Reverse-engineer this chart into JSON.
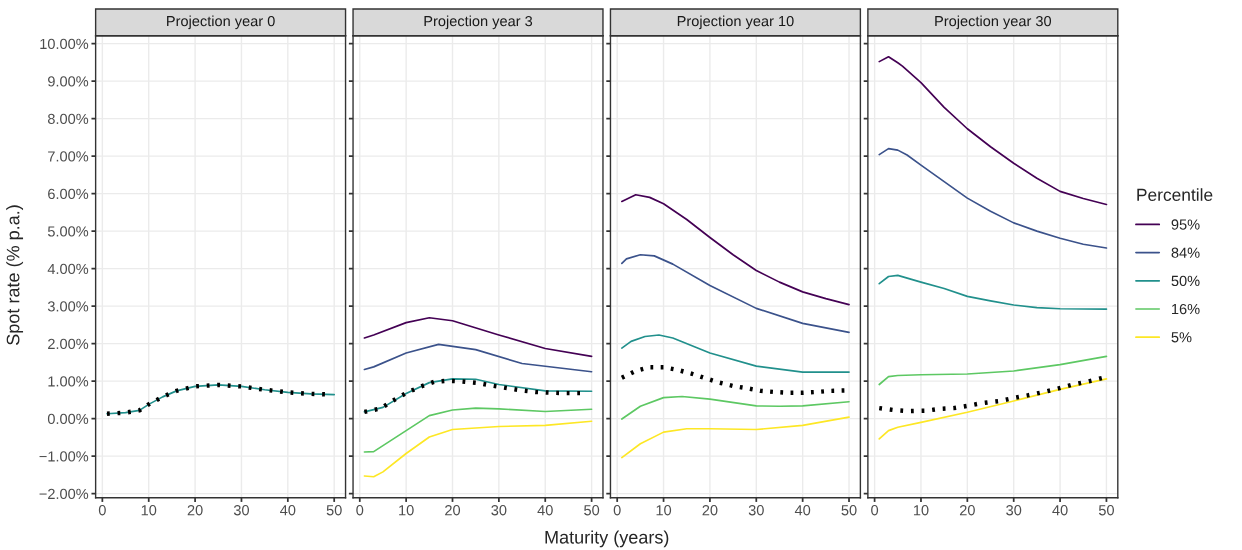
{
  "chart_data": [
    {
      "type": "line",
      "title": "Projection year 0",
      "ylabel": "Spot rate (% p.a.)",
      "xlim": [
        -1.45,
        52.45
      ],
      "ylim": [
        -2.11,
        10.21
      ],
      "xticks": [
        0,
        10,
        20,
        30,
        40,
        50
      ],
      "yticks": [
        {
          "value": -2,
          "label": "−2.00%"
        },
        {
          "value": -1,
          "label": "−1.00%"
        },
        {
          "value": 0,
          "label": "0.00%"
        },
        {
          "value": 1,
          "label": "1.00%"
        },
        {
          "value": 2,
          "label": "2.00%"
        },
        {
          "value": 3,
          "label": "3.00%"
        },
        {
          "value": 4,
          "label": "4.00%"
        },
        {
          "value": 5,
          "label": "5.00%"
        },
        {
          "value": 6,
          "label": "6.00%"
        },
        {
          "value": 7,
          "label": "7.00%"
        },
        {
          "value": 8,
          "label": "8.00%"
        },
        {
          "value": 9,
          "label": "9.00%"
        },
        {
          "value": 10,
          "label": "10.00%"
        }
      ],
      "grid": true,
      "series": [
        {
          "color": "#21908c",
          "x": [
            1,
            5,
            8,
            10,
            13,
            16,
            20,
            25,
            30,
            35,
            40,
            45,
            50
          ],
          "values": [
            0.13,
            0.16,
            0.22,
            0.38,
            0.58,
            0.74,
            0.86,
            0.9,
            0.86,
            0.77,
            0.7,
            0.66,
            0.64
          ]
        },
        {
          "color": "#000000",
          "line_style": "dotted",
          "x": [
            1,
            5,
            8,
            10,
            13,
            16,
            20,
            25,
            30,
            35,
            40,
            45,
            48
          ],
          "values": [
            0.13,
            0.16,
            0.22,
            0.38,
            0.58,
            0.74,
            0.86,
            0.9,
            0.86,
            0.77,
            0.7,
            0.66,
            0.65
          ]
        }
      ]
    },
    {
      "type": "line",
      "title": "Projection year 3",
      "xlabel": "Maturity (years)",
      "xlim": [
        -1.45,
        52.45
      ],
      "ylim": [
        -2.11,
        10.21
      ],
      "xticks": [
        0,
        10,
        20,
        30,
        40,
        50
      ],
      "yticks": [
        {
          "value": -2,
          "label": null
        },
        {
          "value": -1,
          "label": null
        },
        {
          "value": 0,
          "label": null
        },
        {
          "value": 1,
          "label": null
        },
        {
          "value": 2,
          "label": null
        },
        {
          "value": 3,
          "label": null
        },
        {
          "value": 4,
          "label": null
        },
        {
          "value": 5,
          "label": null
        },
        {
          "value": 6,
          "label": null
        },
        {
          "value": 7,
          "label": null
        },
        {
          "value": 8,
          "label": null
        },
        {
          "value": 9,
          "label": null
        },
        {
          "value": 10,
          "label": null
        }
      ],
      "grid": true,
      "tick_labels": "x",
      "series": [
        {
          "color": "#440154",
          "x": [
            1,
            3,
            10,
            15,
            20,
            30,
            40,
            50
          ],
          "values": [
            2.15,
            2.23,
            2.56,
            2.69,
            2.61,
            2.23,
            1.87,
            1.66
          ]
        },
        {
          "color": "#3b528b",
          "x": [
            1,
            3,
            10,
            17,
            25,
            35,
            50
          ],
          "values": [
            1.31,
            1.38,
            1.75,
            1.98,
            1.84,
            1.47,
            1.25
          ]
        },
        {
          "color": "#21908c",
          "x": [
            1,
            5,
            10,
            15,
            20,
            25,
            30,
            40,
            50
          ],
          "values": [
            0.18,
            0.3,
            0.67,
            0.96,
            1.06,
            1.05,
            0.91,
            0.74,
            0.73
          ]
        },
        {
          "color": "#5dc863",
          "x": [
            1,
            3,
            10,
            15,
            20,
            25,
            30,
            40,
            50
          ],
          "values": [
            -0.89,
            -0.88,
            -0.32,
            0.08,
            0.23,
            0.28,
            0.26,
            0.19,
            0.25
          ]
        },
        {
          "color": "#fde725",
          "x": [
            1,
            3,
            5,
            10,
            15,
            20,
            30,
            40,
            50
          ],
          "values": [
            -1.53,
            -1.55,
            -1.42,
            -0.93,
            -0.49,
            -0.29,
            -0.21,
            -0.18,
            -0.07
          ]
        },
        {
          "color": "#000000",
          "line_style": "dotted",
          "x": [
            1,
            4.5,
            7,
            10,
            13,
            16,
            19,
            22,
            25.5,
            28.5,
            32,
            35,
            38,
            41.5,
            44.5,
            47.5
          ],
          "values": [
            0.18,
            0.27,
            0.47,
            0.68,
            0.85,
            0.98,
            1.01,
            0.99,
            0.95,
            0.88,
            0.81,
            0.75,
            0.71,
            0.69,
            0.68,
            0.68
          ]
        }
      ]
    },
    {
      "type": "line",
      "title": "Projection year 10",
      "xlim": [
        -1.45,
        52.45
      ],
      "ylim": [
        -2.11,
        10.21
      ],
      "xticks": [
        0,
        10,
        20,
        30,
        40,
        50
      ],
      "yticks": [
        {
          "value": -2,
          "label": null
        },
        {
          "value": -1,
          "label": null
        },
        {
          "value": 0,
          "label": null
        },
        {
          "value": 1,
          "label": null
        },
        {
          "value": 2,
          "label": null
        },
        {
          "value": 3,
          "label": null
        },
        {
          "value": 4,
          "label": null
        },
        {
          "value": 5,
          "label": null
        },
        {
          "value": 6,
          "label": null
        },
        {
          "value": 7,
          "label": null
        },
        {
          "value": 8,
          "label": null
        },
        {
          "value": 9,
          "label": null
        },
        {
          "value": 10,
          "label": null
        }
      ],
      "grid": true,
      "tick_labels": "x",
      "series": [
        {
          "color": "#440154",
          "x": [
            1,
            4,
            7,
            10,
            15,
            20,
            25,
            30,
            35,
            40,
            45,
            50
          ],
          "values": [
            5.79,
            5.97,
            5.9,
            5.73,
            5.31,
            4.83,
            4.37,
            3.95,
            3.64,
            3.38,
            3.2,
            3.04
          ]
        },
        {
          "color": "#3b528b",
          "x": [
            1,
            2,
            5,
            8,
            12,
            20,
            30,
            40,
            50
          ],
          "values": [
            4.14,
            4.26,
            4.37,
            4.34,
            4.12,
            3.55,
            2.94,
            2.54,
            2.3
          ]
        },
        {
          "color": "#21908c",
          "x": [
            1,
            3,
            6,
            9,
            12,
            20,
            30,
            40,
            50
          ],
          "values": [
            1.88,
            2.06,
            2.19,
            2.23,
            2.15,
            1.75,
            1.4,
            1.24,
            1.24
          ]
        },
        {
          "color": "#5dc863",
          "x": [
            1,
            5,
            10,
            14,
            20,
            30,
            35,
            40,
            50
          ],
          "values": [
            -0.01,
            0.33,
            0.56,
            0.59,
            0.52,
            0.34,
            0.33,
            0.34,
            0.45
          ]
        },
        {
          "color": "#fde725",
          "x": [
            1,
            5,
            10,
            15,
            20,
            30,
            40,
            50
          ],
          "values": [
            -1.04,
            -0.67,
            -0.36,
            -0.27,
            -0.27,
            -0.29,
            -0.18,
            0.04
          ]
        },
        {
          "color": "#000000",
          "line_style": "dotted",
          "x": [
            1,
            4,
            7,
            10,
            13,
            16,
            19,
            22,
            25,
            28,
            31,
            34,
            37,
            40,
            43,
            46,
            49
          ],
          "values": [
            1.09,
            1.27,
            1.37,
            1.37,
            1.3,
            1.2,
            1.08,
            0.96,
            0.87,
            0.81,
            0.74,
            0.71,
            0.69,
            0.69,
            0.71,
            0.74,
            0.75
          ]
        }
      ]
    },
    {
      "type": "line",
      "title": "Projection year 30",
      "legend_title": "Percentile",
      "legend": "right",
      "xlim": [
        -1.45,
        52.45
      ],
      "ylim": [
        -2.11,
        10.21
      ],
      "xticks": [
        0,
        10,
        20,
        30,
        40,
        50
      ],
      "yticks": [
        {
          "value": -2,
          "label": null
        },
        {
          "value": -1,
          "label": null
        },
        {
          "value": 0,
          "label": null
        },
        {
          "value": 1,
          "label": null
        },
        {
          "value": 2,
          "label": null
        },
        {
          "value": 3,
          "label": null
        },
        {
          "value": 4,
          "label": null
        },
        {
          "value": 5,
          "label": null
        },
        {
          "value": 6,
          "label": null
        },
        {
          "value": 7,
          "label": null
        },
        {
          "value": 8,
          "label": null
        },
        {
          "value": 9,
          "label": null
        },
        {
          "value": 10,
          "label": null
        }
      ],
      "grid": true,
      "tick_labels": "x",
      "series": [
        {
          "name": "95%",
          "color": "#440154",
          "x": [
            1,
            3,
            5,
            6,
            10,
            15,
            20,
            25,
            30,
            35,
            40,
            45,
            50
          ],
          "values": [
            9.52,
            9.65,
            9.49,
            9.4,
            8.96,
            8.3,
            7.73,
            7.25,
            6.81,
            6.41,
            6.06,
            5.87,
            5.71
          ]
        },
        {
          "name": "84%",
          "color": "#3b528b",
          "x": [
            1,
            3,
            5,
            7,
            10,
            15,
            20,
            25,
            30,
            35,
            40,
            45,
            50
          ],
          "values": [
            7.04,
            7.2,
            7.16,
            7.03,
            6.76,
            6.32,
            5.88,
            5.53,
            5.22,
            5.0,
            4.81,
            4.65,
            4.55
          ]
        },
        {
          "name": "50%",
          "color": "#21908c",
          "x": [
            1,
            3,
            5,
            10,
            15,
            20,
            25,
            30,
            35,
            40,
            50
          ],
          "values": [
            3.6,
            3.79,
            3.82,
            3.64,
            3.47,
            3.26,
            3.14,
            3.03,
            2.96,
            2.93,
            2.92
          ]
        },
        {
          "name": "16%",
          "color": "#5dc863",
          "x": [
            1,
            3,
            5,
            10,
            20,
            30,
            40,
            50
          ],
          "values": [
            0.91,
            1.12,
            1.15,
            1.17,
            1.19,
            1.27,
            1.44,
            1.66
          ]
        },
        {
          "name": "5%",
          "color": "#fde725",
          "x": [
            1,
            3,
            5,
            10,
            20,
            30,
            40,
            50
          ],
          "values": [
            -0.54,
            -0.32,
            -0.23,
            -0.1,
            0.17,
            0.47,
            0.78,
            1.06
          ]
        },
        {
          "color": "#000000",
          "line_style": "dotted",
          "x": [
            1,
            4,
            7.5,
            11,
            14,
            17,
            20,
            23,
            27,
            30,
            33,
            36.5,
            39.5,
            42.5,
            46,
            49
          ],
          "values": [
            0.28,
            0.23,
            0.2,
            0.21,
            0.26,
            0.28,
            0.34,
            0.41,
            0.47,
            0.55,
            0.62,
            0.71,
            0.8,
            0.9,
            0.99,
            1.08
          ]
        }
      ]
    }
  ]
}
